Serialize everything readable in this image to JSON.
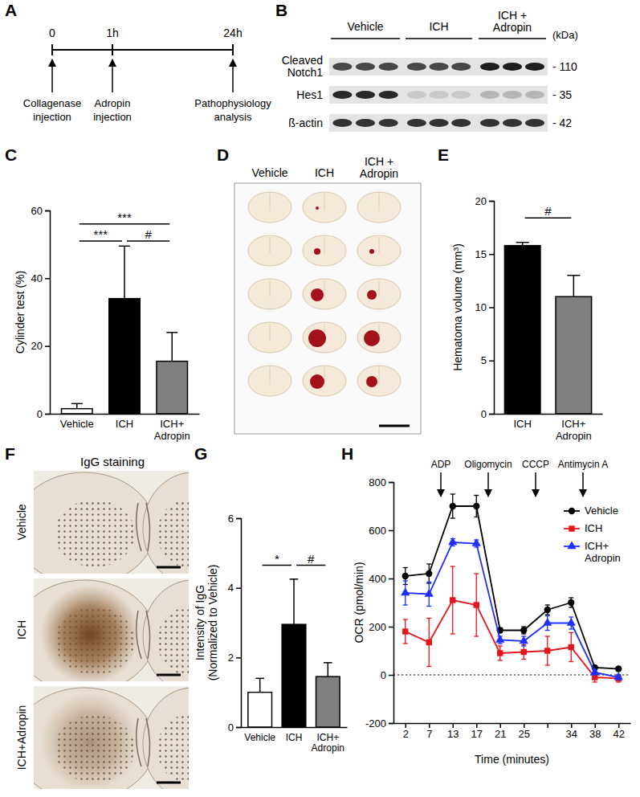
{
  "panel_labels": [
    "A",
    "B",
    "C",
    "D",
    "E",
    "F",
    "G",
    "H"
  ],
  "timeline": {
    "times": [
      "0",
      "1h",
      "24h"
    ],
    "events": [
      "Collagenase\ninjection",
      "Adropin\ninjection",
      "Pathophysiology\nanalysis"
    ]
  },
  "blot": {
    "groups": [
      "Vehicle",
      "ICH",
      "ICH +\nAdropin"
    ],
    "unit": "(kDa)",
    "rows": [
      {
        "label": "Cleaved\nNotch1",
        "size": "- 110"
      },
      {
        "label": "Hes1",
        "size": "- 35"
      },
      {
        "label": "ß-actin",
        "size": "- 42"
      }
    ]
  },
  "brain_slices": {
    "columns": [
      "Vehicle",
      "ICH",
      "ICH +\nAdropin"
    ]
  },
  "igg_staining": {
    "title": "IgG staining",
    "rows": [
      "Vehicle",
      "ICH",
      "ICH+Adropin"
    ]
  },
  "chart_data": [
    {
      "type": "bar",
      "y_label": "Cylinder test (%)",
      "categories": [
        "Vehicle",
        "ICH",
        "ICH+\nAdropin"
      ],
      "values": [
        1.5,
        34,
        15.5
      ],
      "errors": [
        1.5,
        15.5,
        8.5
      ],
      "colors": [
        "#ffffff",
        "#000000",
        "#808080"
      ],
      "ylim": [
        0,
        60
      ],
      "yticks": [
        0,
        20,
        40,
        60
      ],
      "significance": [
        {
          "text": "***",
          "from": 0,
          "to": 2,
          "y": 56
        },
        {
          "text": "***",
          "from": 0,
          "to": 1,
          "y": 51
        },
        {
          "text": "#",
          "from": 1,
          "to": 2,
          "y": 51
        }
      ]
    },
    {
      "type": "bar",
      "y_label": "Hematoma volume (mm³)",
      "categories": [
        "ICH",
        "ICH+\nAdropin"
      ],
      "values": [
        15.8,
        11
      ],
      "errors": [
        0.3,
        2
      ],
      "colors": [
        "#000000",
        "#808080"
      ],
      "ylim": [
        0,
        20
      ],
      "yticks": [
        0,
        5,
        10,
        15,
        20
      ],
      "significance": [
        {
          "text": "#",
          "from": 0,
          "to": 1,
          "y": 18.4
        }
      ]
    },
    {
      "type": "bar",
      "y_label": "Intensity of IgG\n(Normalized to Vehicle)",
      "categories": [
        "Vehicle",
        "ICH",
        "ICH+\nAdropin"
      ],
      "values": [
        1,
        2.95,
        1.45
      ],
      "errors": [
        0.4,
        1.3,
        0.4
      ],
      "colors": [
        "#ffffff",
        "#000000",
        "#808080"
      ],
      "ylim": [
        0,
        6
      ],
      "yticks": [
        0,
        2,
        4,
        6
      ],
      "significance": [
        {
          "text": "*",
          "from": 0,
          "to": 1,
          "y": 4.65
        },
        {
          "text": "#",
          "from": 1,
          "to": 2,
          "y": 4.65
        }
      ]
    },
    {
      "type": "line",
      "y_label": "OCR (pmol/min)",
      "x_label": "Time (minutes)",
      "categories": [
        "2",
        "7",
        "13",
        "17",
        "21",
        "25",
        null,
        "34",
        "38",
        "42"
      ],
      "ylim": [
        -200,
        800
      ],
      "yticks": [
        -200,
        0,
        200,
        400,
        600,
        800
      ],
      "reference_line": 0,
      "legend": "upper right",
      "arrows": [
        {
          "text": "ADP",
          "at": 1.5
        },
        {
          "text": "Oligomycin",
          "at": 3.5
        },
        {
          "text": "CCCP",
          "at": 5.5
        },
        {
          "text": "Antimycin A",
          "at": 7.5
        }
      ],
      "series": [
        {
          "name": "Vehicle",
          "color": "#000000",
          "marker": "circle",
          "values": [
            410,
            420,
            700,
            700,
            185,
            185,
            270,
            300,
            30,
            25
          ],
          "errors": [
            35,
            40,
            50,
            45,
            10,
            15,
            20,
            20,
            5,
            5
          ]
        },
        {
          "name": "ICH",
          "color": "#e8141c",
          "marker": "square",
          "values": [
            180,
            135,
            310,
            290,
            90,
            95,
            100,
            115,
            -10,
            -15
          ],
          "errors": [
            50,
            100,
            140,
            130,
            30,
            30,
            60,
            60,
            20,
            15
          ]
        },
        {
          "name": "ICH+\nAdropin",
          "color": "#1f2fff",
          "marker": "triangle",
          "values": [
            340,
            335,
            550,
            545,
            145,
            140,
            215,
            215,
            10,
            -10
          ],
          "errors": [
            50,
            50,
            15,
            15,
            15,
            20,
            30,
            25,
            10,
            10
          ]
        }
      ]
    }
  ]
}
